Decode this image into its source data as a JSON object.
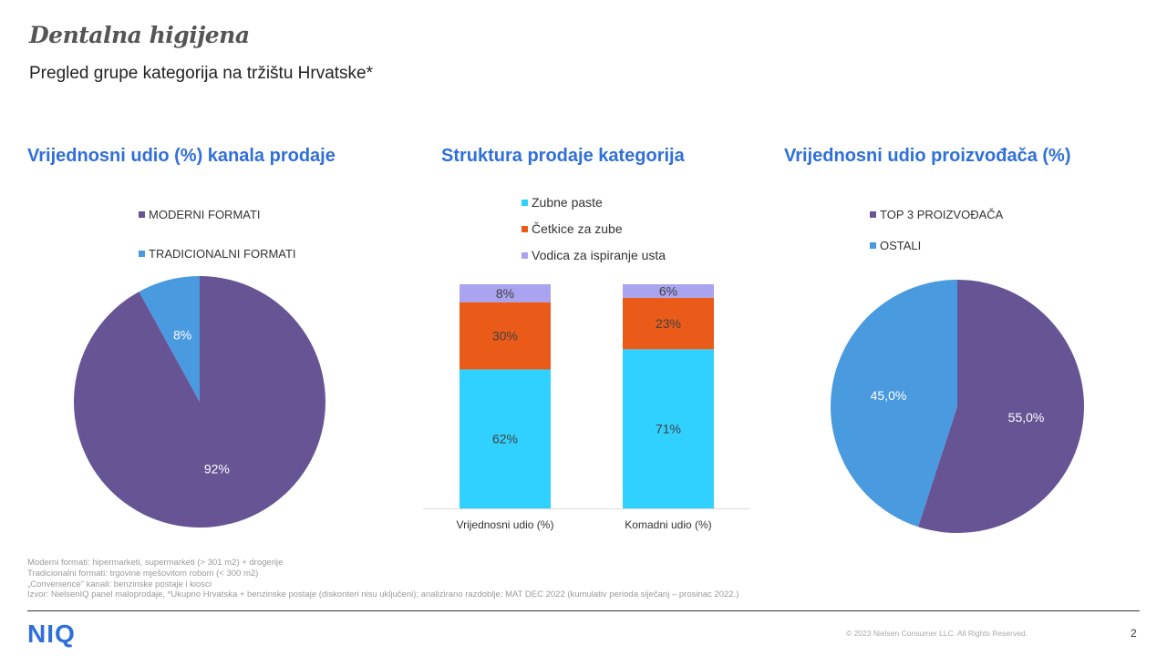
{
  "header": {
    "title": "Dentalna higijena",
    "subtitle": "Pregled grupe kategorija na tržištu Hrvatske*"
  },
  "sections": {
    "left_title": "Vrijednosni  udio (%) kanala prodaje",
    "middle_title": "Struktura prodaje kategorija",
    "right_title": "Vrijednosni  udio proizvođača (%)"
  },
  "chart_data": [
    {
      "type": "pie",
      "labels": [
        "MODERNI FORMATI",
        "TRADICIONALNI FORMATI"
      ],
      "values": [
        92,
        8
      ],
      "data_labels": [
        "92%",
        "8%"
      ],
      "colors": [
        "#665495",
        "#4a9ae0"
      ],
      "legend": "top-left"
    },
    {
      "type": "bar",
      "stacked": true,
      "categories": [
        "Vrijednosni udio (%)",
        "Komadni udio (%)"
      ],
      "series": [
        {
          "name": "Zubne paste",
          "values": [
            62,
            71
          ],
          "labels": [
            "62%",
            "71%"
          ],
          "color": "#31d1ff"
        },
        {
          "name": "Četkice za zube",
          "values": [
            30,
            23
          ],
          "labels": [
            "30%",
            "23%"
          ],
          "color": "#ea5b1a"
        },
        {
          "name": "Vodica za ispiranje usta",
          "values": [
            8,
            6
          ],
          "labels": [
            "8%",
            "6%"
          ],
          "color": "#a9a3f0"
        }
      ],
      "ylim": [
        0,
        100
      ],
      "legend": "top"
    },
    {
      "type": "pie",
      "labels": [
        "TOP 3 PROIZVOĐAČA",
        "OSTALI"
      ],
      "values": [
        55.0,
        45.0
      ],
      "data_labels": [
        "55,0%",
        "45,0%"
      ],
      "colors": [
        "#665495",
        "#4a9ae0"
      ],
      "legend": "top-left"
    }
  ],
  "footnotes": [
    "Moderni formati: hipermarketi, supermarketi (> 301 m2) + drogerije",
    "Tradicionalni formati: trgovine mješovitom robom (< 300 m2)",
    "„Convenience\" kanali: benzinske postaje i kiosci",
    "Izvor: NielsenIQ panel maloprodaje, *Ukupno Hrvatska + benzinske postaje (diskonteri nisu uključeni); analizirano razdoblje: MAT DEC 2022 (kumulativ perioda siječanj – prosinac 2022.)"
  ],
  "footer": {
    "logo": "NIQ",
    "copyright": "© 2023 Nielsen Consumer LLC. All Rights Reserved.",
    "page_number": "2"
  }
}
